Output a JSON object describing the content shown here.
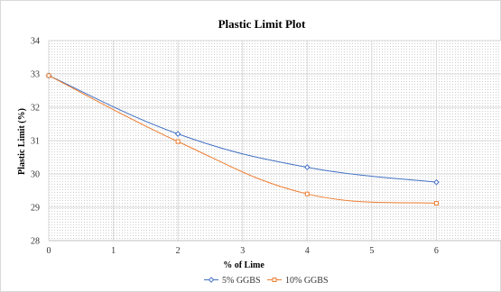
{
  "chart_data": {
    "type": "line",
    "title": "Plastic Limit Plot",
    "xlabel": "% of Lime",
    "ylabel": "Plastic Limit (%)",
    "xlim": [
      0,
      7
    ],
    "ylim": [
      28,
      34
    ],
    "xticks": [
      "0",
      "1",
      "2",
      "3",
      "4",
      "5",
      "6"
    ],
    "yticks": [
      "28",
      "29",
      "30",
      "31",
      "32",
      "33",
      "34"
    ],
    "grid": true,
    "legend_position": "bottom",
    "series": [
      {
        "name": "5% GGBS",
        "x": [
          0,
          2,
          4,
          6
        ],
        "y": [
          32.95,
          31.2,
          30.2,
          29.75
        ],
        "color": "#4472C4",
        "marker": "diamond"
      },
      {
        "name": "10% GGBS",
        "x": [
          0,
          2,
          4,
          6
        ],
        "y": [
          32.95,
          30.97,
          29.4,
          29.12
        ],
        "color": "#ED7D31",
        "marker": "square"
      }
    ]
  }
}
